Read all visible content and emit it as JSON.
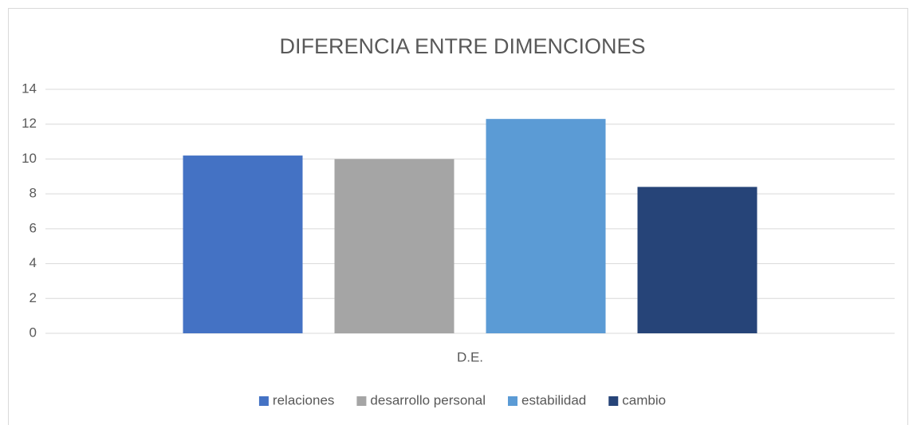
{
  "chart_data": {
    "type": "bar",
    "title": "DIFERENCIA ENTRE DIMENCIONES",
    "categories": [
      "D.E."
    ],
    "series": [
      {
        "name": "relaciones",
        "color": "#4472c4",
        "values": [
          10.2
        ]
      },
      {
        "name": "desarrollo personal",
        "color": "#a5a5a5",
        "values": [
          10
        ]
      },
      {
        "name": "estabilidad",
        "color": "#5b9bd5",
        "values": [
          12.3
        ]
      },
      {
        "name": "cambio",
        "color": "#264478",
        "values": [
          8.4
        ]
      }
    ],
    "ylim": [
      0,
      14
    ],
    "yticks": [
      0,
      2,
      4,
      6,
      8,
      10,
      12,
      14
    ],
    "grid": true,
    "legend": "bottom"
  }
}
